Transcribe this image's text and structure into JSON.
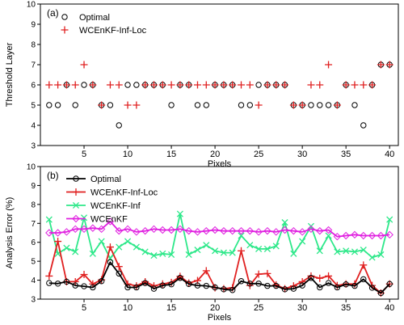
{
  "chart_data": [
    {
      "type": "scatter",
      "panel_label": "(a)",
      "xlabel": "Pixels",
      "ylabel": "Threshold Layer",
      "xlim": [
        0,
        41
      ],
      "ylim": [
        3,
        10
      ],
      "xticks": [
        5,
        10,
        15,
        20,
        25,
        30,
        35,
        40
      ],
      "yticks": [
        3,
        4,
        5,
        6,
        7,
        8,
        9,
        10
      ],
      "legend_position": "top-left",
      "series": [
        {
          "name": "Optimal",
          "marker": "open-circle",
          "color": "#000000",
          "x": [
            1,
            2,
            3,
            4,
            5,
            6,
            7,
            8,
            9,
            10,
            11,
            12,
            13,
            14,
            15,
            16,
            17,
            18,
            19,
            20,
            21,
            22,
            23,
            24,
            25,
            26,
            27,
            28,
            29,
            30,
            31,
            32,
            33,
            34,
            35,
            36,
            37,
            38,
            39,
            40
          ],
          "y": [
            5,
            5,
            6,
            5,
            6,
            6,
            5,
            5,
            4,
            6,
            6,
            6,
            6,
            6,
            5,
            6,
            6,
            5,
            5,
            6,
            6,
            6,
            5,
            5,
            6,
            6,
            6,
            6,
            5,
            5,
            5,
            5,
            5,
            5,
            6,
            5,
            4,
            6,
            7,
            7
          ]
        },
        {
          "name": "WCEnKF-Inf-Loc",
          "marker": "plus",
          "color": "#e02020",
          "x": [
            1,
            2,
            3,
            4,
            5,
            6,
            7,
            8,
            9,
            10,
            11,
            12,
            13,
            14,
            15,
            16,
            17,
            18,
            19,
            20,
            21,
            22,
            23,
            24,
            25,
            26,
            27,
            28,
            29,
            30,
            31,
            32,
            33,
            34,
            35,
            36,
            37,
            38,
            39,
            40
          ],
          "y": [
            6,
            6,
            6,
            6,
            7,
            6,
            5,
            6,
            6,
            5,
            5,
            6,
            6,
            6,
            6,
            6,
            6,
            6,
            6,
            6,
            6,
            6,
            6,
            6,
            5,
            6,
            6,
            6,
            5,
            5,
            6,
            6,
            7,
            5,
            6,
            6,
            6,
            6,
            7,
            7
          ]
        }
      ]
    },
    {
      "type": "line",
      "panel_label": "(b)",
      "xlabel": "Pixels",
      "ylabel": "Analysis Error (%)",
      "xlim": [
        0,
        41
      ],
      "ylim": [
        3,
        10
      ],
      "xticks": [
        5,
        10,
        15,
        20,
        25,
        30,
        35,
        40
      ],
      "yticks": [
        3,
        4,
        5,
        6,
        7,
        8,
        9,
        10
      ],
      "legend_position": "top-left",
      "x": [
        1,
        2,
        3,
        4,
        5,
        6,
        7,
        8,
        9,
        10,
        11,
        12,
        13,
        14,
        15,
        16,
        17,
        18,
        19,
        20,
        21,
        22,
        23,
        24,
        25,
        26,
        27,
        28,
        29,
        30,
        31,
        32,
        33,
        34,
        35,
        36,
        37,
        38,
        39,
        40
      ],
      "series": [
        {
          "name": "Optimal",
          "marker": "open-circle",
          "color": "#000000",
          "values": [
            3.85,
            3.82,
            3.92,
            3.72,
            3.68,
            3.62,
            3.95,
            4.95,
            4.35,
            3.62,
            3.62,
            3.85,
            3.55,
            3.72,
            3.78,
            4.12,
            3.8,
            3.72,
            3.7,
            3.62,
            3.52,
            3.48,
            3.95,
            3.82,
            3.82,
            3.7,
            3.7,
            3.52,
            3.55,
            3.72,
            4.12,
            3.62,
            3.85,
            3.62,
            3.78,
            3.7,
            4.05,
            3.6,
            3.32,
            3.8
          ]
        },
        {
          "name": "WCEnKF-Inf-Loc",
          "marker": "plus",
          "color": "#e02020",
          "values": [
            4.22,
            6.05,
            3.92,
            3.92,
            4.3,
            3.8,
            4.02,
            5.75,
            4.72,
            3.8,
            3.7,
            3.92,
            3.7,
            3.8,
            3.88,
            4.2,
            3.85,
            3.98,
            4.5,
            3.6,
            3.55,
            3.6,
            5.55,
            3.72,
            4.32,
            4.35,
            3.75,
            3.55,
            3.7,
            3.92,
            4.22,
            4.1,
            4.22,
            3.72,
            3.8,
            3.8,
            4.8,
            3.72,
            3.32,
            3.8
          ]
        },
        {
          "name": "WCEnKF-Inf",
          "marker": "x",
          "color": "#2ee88a",
          "values": [
            7.2,
            5.4,
            5.7,
            5.5,
            7.3,
            5.4,
            6.05,
            5.15,
            5.75,
            6.05,
            5.75,
            5.5,
            5.3,
            5.4,
            5.35,
            7.5,
            5.35,
            5.6,
            5.85,
            5.55,
            5.45,
            5.45,
            6.35,
            5.85,
            5.65,
            5.65,
            5.8,
            7.05,
            5.4,
            6.05,
            6.85,
            5.55,
            6.35,
            5.5,
            5.55,
            5.5,
            5.6,
            5.2,
            5.35,
            7.2
          ]
        },
        {
          "name": "WCEnKF",
          "marker": "open-diamond",
          "color": "#e020e0",
          "values": [
            6.5,
            6.5,
            6.55,
            6.7,
            6.7,
            6.75,
            6.7,
            7.1,
            6.6,
            6.7,
            6.55,
            6.6,
            6.7,
            6.65,
            6.65,
            6.7,
            6.6,
            6.55,
            6.6,
            6.65,
            6.6,
            6.6,
            6.6,
            6.6,
            6.55,
            6.6,
            6.55,
            6.65,
            6.6,
            6.55,
            6.7,
            6.6,
            6.65,
            6.3,
            6.35,
            6.4,
            6.35,
            6.35,
            6.35,
            6.4
          ]
        }
      ]
    }
  ]
}
